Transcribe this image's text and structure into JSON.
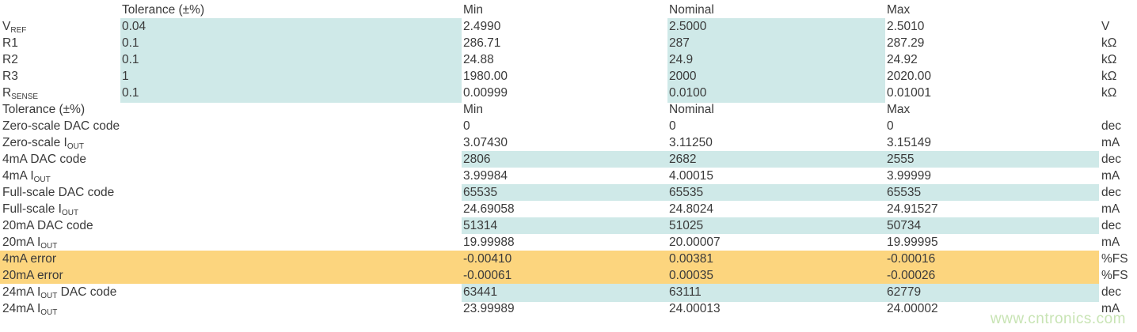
{
  "colors": {
    "highlight_cyan": "#cfe9e8",
    "highlight_orange": "#fcd57e",
    "text": "#3a3a3a",
    "watermark_green": "#c8e4b4",
    "background": "#ffffff"
  },
  "watermark": {
    "text": "www.cntronics.com"
  },
  "chart_data": {
    "type": "table",
    "section1": {
      "header": {
        "tolerance": "Tolerance (±%)",
        "min": "Min",
        "nominal": "Nominal",
        "max": "Max"
      },
      "rows": [
        {
          "label": [
            {
              "t": "V"
            },
            {
              "s": "REF"
            }
          ],
          "tolerance": "0.04",
          "min": "2.4990",
          "nominal": "2.5000",
          "max": "2.5010",
          "unit": "V",
          "highlight": "tol-nom"
        },
        {
          "label": [
            {
              "t": "R1"
            }
          ],
          "tolerance": "0.1",
          "min": "286.71",
          "nominal": "287",
          "max": "287.29",
          "unit": "kΩ",
          "highlight": "tol-nom"
        },
        {
          "label": [
            {
              "t": "R2"
            }
          ],
          "tolerance": "0.1",
          "min": "24.88",
          "nominal": "24.9",
          "max": "24.92",
          "unit": "kΩ",
          "highlight": "tol-nom"
        },
        {
          "label": [
            {
              "t": "R3"
            }
          ],
          "tolerance": "1",
          "min": "1980.00",
          "nominal": "2000",
          "max": "2020.00",
          "unit": "kΩ",
          "highlight": "tol-nom"
        },
        {
          "label": [
            {
              "t": "R"
            },
            {
              "s": "SENSE"
            }
          ],
          "tolerance": "0.1",
          "min": "0.00999",
          "nominal": "0.0100",
          "max": "0.01001",
          "unit": "kΩ",
          "highlight": "tol-nom"
        }
      ]
    },
    "section2": {
      "header": {
        "label": "Tolerance (±%)",
        "min": "Min",
        "nominal": "Nominal",
        "max": "Max"
      },
      "rows": [
        {
          "label": [
            {
              "t": "Zero-scale DAC code"
            }
          ],
          "min": "0",
          "nominal": "0",
          "max": "0",
          "unit": "dec",
          "highlight": "none"
        },
        {
          "label": [
            {
              "t": "Zero-scale I"
            },
            {
              "s": "OUT"
            }
          ],
          "min": "3.07430",
          "nominal": "3.11250",
          "max": "3.15149",
          "unit": "mA",
          "highlight": "none"
        },
        {
          "label": [
            {
              "t": "4mA DAC code"
            }
          ],
          "min": "2806",
          "nominal": "2682",
          "max": "2555",
          "unit": "dec",
          "highlight": "band"
        },
        {
          "label": [
            {
              "t": "4mA I"
            },
            {
              "s": "OUT"
            }
          ],
          "min": "3.99984",
          "nominal": "4.00015",
          "max": "3.99999",
          "unit": "mA",
          "highlight": "none"
        },
        {
          "label": [
            {
              "t": "Full-scale DAC code"
            }
          ],
          "min": "65535",
          "nominal": "65535",
          "max": "65535",
          "unit": "dec",
          "highlight": "band"
        },
        {
          "label": [
            {
              "t": "Full-scale I"
            },
            {
              "s": "OUT"
            }
          ],
          "min": "24.69058",
          "nominal": "24.8024",
          "max": "24.91527",
          "unit": "mA",
          "highlight": "none"
        },
        {
          "label": [
            {
              "t": "20mA DAC code"
            }
          ],
          "min": "51314",
          "nominal": "51025",
          "max": "50734",
          "unit": "dec",
          "highlight": "band"
        },
        {
          "label": [
            {
              "t": "20mA I"
            },
            {
              "s": "OUT"
            }
          ],
          "min": "19.99988",
          "nominal": "20.00007",
          "max": "19.99995",
          "unit": "mA",
          "highlight": "none"
        },
        {
          "label": [
            {
              "t": "4mA error"
            }
          ],
          "min": "-0.00410",
          "nominal": "0.00381",
          "max": "-0.00016",
          "unit": "%FS",
          "highlight": "error"
        },
        {
          "label": [
            {
              "t": "20mA error"
            }
          ],
          "min": "-0.00061",
          "nominal": "0.00035",
          "max": "-0.00026",
          "unit": "%FS",
          "highlight": "error"
        },
        {
          "label": [
            {
              "t": "24mA I"
            },
            {
              "s": "OUT"
            },
            {
              "t": " DAC code"
            }
          ],
          "min": "63441",
          "nominal": "63111",
          "max": "62779",
          "unit": "dec",
          "highlight": "band"
        },
        {
          "label": [
            {
              "t": "24mA I"
            },
            {
              "s": "OUT"
            }
          ],
          "min": "23.99989",
          "nominal": "24.00013",
          "max": "24.00002",
          "unit": "mA",
          "highlight": "none"
        }
      ]
    }
  }
}
